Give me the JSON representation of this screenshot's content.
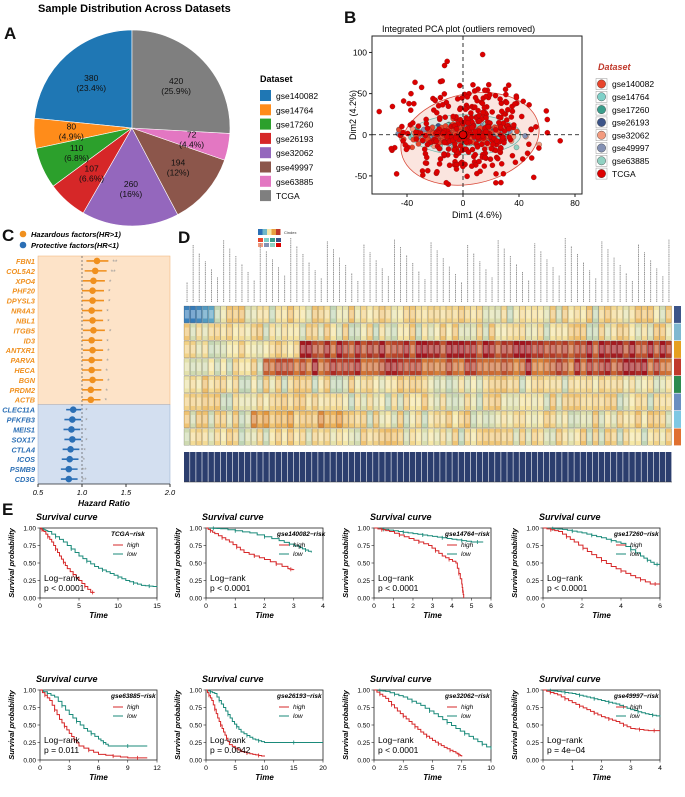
{
  "panels": {
    "A": "A",
    "B": "B",
    "C": "C",
    "D": "D",
    "E": "E"
  },
  "pie": {
    "title": "Sample Distribution Across Datasets",
    "legend_title": "Dataset",
    "colors": {
      "gse140082": "#1f77b4",
      "gse14764": "#ff8c1a",
      "gse17260": "#2ca02c",
      "gse26193": "#d62728",
      "gse32062": "#9467bd",
      "gse49997": "#8c564b",
      "gse63885": "#e377c2",
      "TCGA": "#7f7f7f"
    }
  },
  "pca": {
    "title": "Integrated PCA plot (outliers removed)",
    "legend_title": "Dataset",
    "colors": {
      "gse140082": "#e8452c",
      "gse14764": "#7fd0c8",
      "gse17260": "#3a9e8c",
      "gse26193": "#3c5488",
      "gse32062": "#f39b7f",
      "gse49997": "#8491b4",
      "gse63885": "#91d1c2",
      "TCGA": "#dc0000"
    }
  },
  "forest": {
    "legend": [
      {
        "label": "Hazardous factors(HR>1)",
        "color": "#f0901e"
      },
      {
        "label": "Protective factors(HR<1)",
        "color": "#2b6fb5"
      }
    ]
  },
  "heatmap": {
    "key_title": "Cindex"
  },
  "chart_data": [
    {
      "type": "pie",
      "title": "Sample Distribution Across Datasets",
      "legend": "Dataset",
      "categories": [
        "gse140082",
        "gse14764",
        "gse17260",
        "gse26193",
        "gse32062",
        "gse49997",
        "gse63885",
        "TCGA"
      ],
      "values": [
        380,
        80,
        110,
        107,
        260,
        194,
        72,
        420
      ],
      "labels": [
        "380\n(23.4%)",
        "80\n(4.9%)",
        "110\n(6.8%)",
        "107\n(6.6%)",
        "260\n(16%)",
        "194\n(12%)",
        "72\n(4.4%)",
        "420\n(25.9%)"
      ]
    },
    {
      "type": "scatter",
      "title": "Integrated PCA plot (outliers removed)",
      "xlabel": "Dim1 (4.6%)",
      "ylabel": "Dim2 (4.2%)",
      "xlim": [
        -65,
        85
      ],
      "ylim": [
        -72,
        120
      ],
      "xticks": [
        -40,
        0,
        40,
        80
      ],
      "yticks": [
        -50,
        0,
        50,
        100
      ],
      "series_names": [
        "gse140082",
        "gse14764",
        "gse17260",
        "gse26193",
        "gse32062",
        "gse49997",
        "gse63885",
        "TCGA"
      ]
    },
    {
      "type": "forest",
      "xlabel": "Hazard Ratio",
      "xlim": [
        0.5,
        2.0
      ],
      "xticks": [
        0.5,
        1.0,
        1.5,
        2.0
      ],
      "genes": [
        {
          "name": "FBN1",
          "hr": 1.17,
          "lo": 1.05,
          "hi": 1.3,
          "group": "haz",
          "sig": "**"
        },
        {
          "name": "COL5A2",
          "hr": 1.15,
          "lo": 1.03,
          "hi": 1.28,
          "group": "haz",
          "sig": "**"
        },
        {
          "name": "XPO4",
          "hr": 1.13,
          "lo": 1.01,
          "hi": 1.26,
          "group": "haz",
          "sig": "*"
        },
        {
          "name": "PHF20",
          "hr": 1.12,
          "lo": 1.0,
          "hi": 1.25,
          "group": "haz",
          "sig": "*"
        },
        {
          "name": "DPYSL3",
          "hr": 1.12,
          "lo": 1.0,
          "hi": 1.25,
          "group": "haz",
          "sig": "*"
        },
        {
          "name": "NR4A3",
          "hr": 1.11,
          "lo": 1.0,
          "hi": 1.23,
          "group": "haz",
          "sig": "*"
        },
        {
          "name": "NBL1",
          "hr": 1.12,
          "lo": 1.01,
          "hi": 1.24,
          "group": "haz",
          "sig": "*"
        },
        {
          "name": "ITGB5",
          "hr": 1.13,
          "lo": 1.01,
          "hi": 1.26,
          "group": "haz",
          "sig": "*"
        },
        {
          "name": "ID3",
          "hr": 1.11,
          "lo": 1.0,
          "hi": 1.23,
          "group": "haz",
          "sig": "*"
        },
        {
          "name": "ANTXR1",
          "hr": 1.12,
          "lo": 1.01,
          "hi": 1.24,
          "group": "haz",
          "sig": "*"
        },
        {
          "name": "PARVA",
          "hr": 1.11,
          "lo": 1.0,
          "hi": 1.23,
          "group": "haz",
          "sig": "*"
        },
        {
          "name": "HECA",
          "hr": 1.11,
          "lo": 1.0,
          "hi": 1.22,
          "group": "haz",
          "sig": "*"
        },
        {
          "name": "BGN",
          "hr": 1.12,
          "lo": 1.0,
          "hi": 1.24,
          "group": "haz",
          "sig": "*"
        },
        {
          "name": "PRDM2",
          "hr": 1.1,
          "lo": 1.0,
          "hi": 1.22,
          "group": "haz",
          "sig": "*"
        },
        {
          "name": "ACTB",
          "hr": 1.1,
          "lo": 1.0,
          "hi": 1.21,
          "group": "haz",
          "sig": "*"
        },
        {
          "name": "CLEC11A",
          "hr": 0.9,
          "lo": 0.82,
          "hi": 0.99,
          "group": "pro",
          "sig": "*"
        },
        {
          "name": "PFKFB3",
          "hr": 0.89,
          "lo": 0.8,
          "hi": 0.99,
          "group": "pro",
          "sig": "*"
        },
        {
          "name": "MEIS1",
          "hr": 0.88,
          "lo": 0.79,
          "hi": 0.98,
          "group": "pro",
          "sig": "*"
        },
        {
          "name": "SOX17",
          "hr": 0.89,
          "lo": 0.8,
          "hi": 0.99,
          "group": "pro",
          "sig": "*"
        },
        {
          "name": "CTLA4",
          "hr": 0.87,
          "lo": 0.78,
          "hi": 0.97,
          "group": "pro",
          "sig": "*"
        },
        {
          "name": "ICOS",
          "hr": 0.86,
          "lo": 0.77,
          "hi": 0.96,
          "group": "pro",
          "sig": "*"
        },
        {
          "name": "PSMB9",
          "hr": 0.85,
          "lo": 0.76,
          "hi": 0.95,
          "group": "pro",
          "sig": "**"
        },
        {
          "name": "CD3G",
          "hr": 0.85,
          "lo": 0.76,
          "hi": 0.95,
          "group": "pro",
          "sig": "**"
        }
      ]
    },
    {
      "type": "heatmap",
      "title": "Cindex",
      "rows": 8,
      "columns": 80,
      "row_colors": [
        "#3c5488",
        "#7fb8d0",
        "#e6a020",
        "#c0392b",
        "#2d8a4e",
        "#6a8fc0",
        "#7ec8e3",
        "#e07030"
      ]
    },
    {
      "type": "line",
      "subplots": [
        {
          "title": "Survival curve",
          "legend_title": "TCGA−risk",
          "xlabel": "Time",
          "ylabel": "Survival probability",
          "xlim": [
            0,
            15
          ],
          "xticks": [
            0,
            5,
            10,
            15
          ],
          "yticks": [
            "0.00",
            "0.25",
            "0.50",
            "0.75",
            "1.00"
          ],
          "logrank": "Log−rank",
          "p": "p < 0.0001",
          "series": [
            {
              "name": "high"
            },
            {
              "name": "low"
            }
          ]
        },
        {
          "title": "Survival curve",
          "legend_title": "gse140082−risk",
          "xlabel": "Time",
          "ylabel": "Survival probability",
          "xlim": [
            0,
            4
          ],
          "xticks": [
            0,
            1,
            2,
            3,
            4
          ],
          "yticks": [
            "0.00",
            "0.25",
            "0.50",
            "0.75",
            "1.00"
          ],
          "logrank": "Log−rank",
          "p": "p < 0.0001",
          "series": [
            {
              "name": "high"
            },
            {
              "name": "low"
            }
          ]
        },
        {
          "title": "Survival curve",
          "legend_title": "gse14764−risk",
          "xlabel": "Time",
          "ylabel": "Survival probability",
          "xlim": [
            0,
            6
          ],
          "xticks": [
            0,
            1,
            2,
            3,
            4,
            5,
            6
          ],
          "yticks": [
            "0.00",
            "0.25",
            "0.50",
            "0.75",
            "1.00"
          ],
          "logrank": "Log−rank",
          "p": "p < 0.0001",
          "series": [
            {
              "name": "high"
            },
            {
              "name": "low"
            }
          ]
        },
        {
          "title": "Survival curve",
          "legend_title": "gse17260−risk",
          "xlabel": "Time",
          "ylabel": "Survival probability",
          "xlim": [
            0,
            6
          ],
          "xticks": [
            0,
            2,
            4,
            6
          ],
          "yticks": [
            "0.00",
            "0.25",
            "0.50",
            "0.75",
            "1.00"
          ],
          "logrank": "Log−rank",
          "p": "p < 0.0001",
          "series": [
            {
              "name": "high"
            },
            {
              "name": "low"
            }
          ]
        },
        {
          "title": "Survival curve",
          "legend_title": "gse63885−risk",
          "xlabel": "Time",
          "ylabel": "Survival probability",
          "xlim": [
            0,
            12
          ],
          "xticks": [
            0,
            3,
            6,
            9,
            12
          ],
          "yticks": [
            "0.00",
            "0.25",
            "0.50",
            "0.75",
            "1.00"
          ],
          "logrank": "Log−rank",
          "p": "p = 0.011",
          "series": [
            {
              "name": "high"
            },
            {
              "name": "low"
            }
          ]
        },
        {
          "title": "Survival curve",
          "legend_title": "gse26193−risk",
          "xlabel": "Time",
          "ylabel": "Survival probability",
          "xlim": [
            0,
            20
          ],
          "xticks": [
            0,
            5,
            10,
            15,
            20
          ],
          "yticks": [
            "0.00",
            "0.25",
            "0.50",
            "0.75",
            "1.00"
          ],
          "logrank": "Log−rank",
          "p": "p = 0.0042",
          "series": [
            {
              "name": "high"
            },
            {
              "name": "low"
            }
          ]
        },
        {
          "title": "Survival curve",
          "legend_title": "gse32062−risk",
          "xlabel": "Time",
          "ylabel": "Survival probability",
          "xlim": [
            0,
            10
          ],
          "xticks": [
            "0",
            "2.5",
            "5",
            "7.5",
            "10"
          ],
          "yticks": [
            "0.00",
            "0.25",
            "0.50",
            "0.75",
            "1.00"
          ],
          "logrank": "Log−rank",
          "p": "p < 0.0001",
          "series": [
            {
              "name": "high"
            },
            {
              "name": "low"
            }
          ]
        },
        {
          "title": "Survival curve",
          "legend_title": "gse49997−risk",
          "xlabel": "Time",
          "ylabel": "Survival probability",
          "xlim": [
            0,
            4
          ],
          "xticks": [
            0,
            1,
            2,
            3,
            4
          ],
          "yticks": [
            "0.00",
            "0.25",
            "0.50",
            "0.75",
            "1.00"
          ],
          "logrank": "Log−rank",
          "p": "p = 4e−04",
          "series": [
            {
              "name": "high"
            },
            {
              "name": "low"
            }
          ]
        }
      ],
      "colors": {
        "high": "#d62728",
        "low": "#1a8a7a"
      }
    }
  ]
}
